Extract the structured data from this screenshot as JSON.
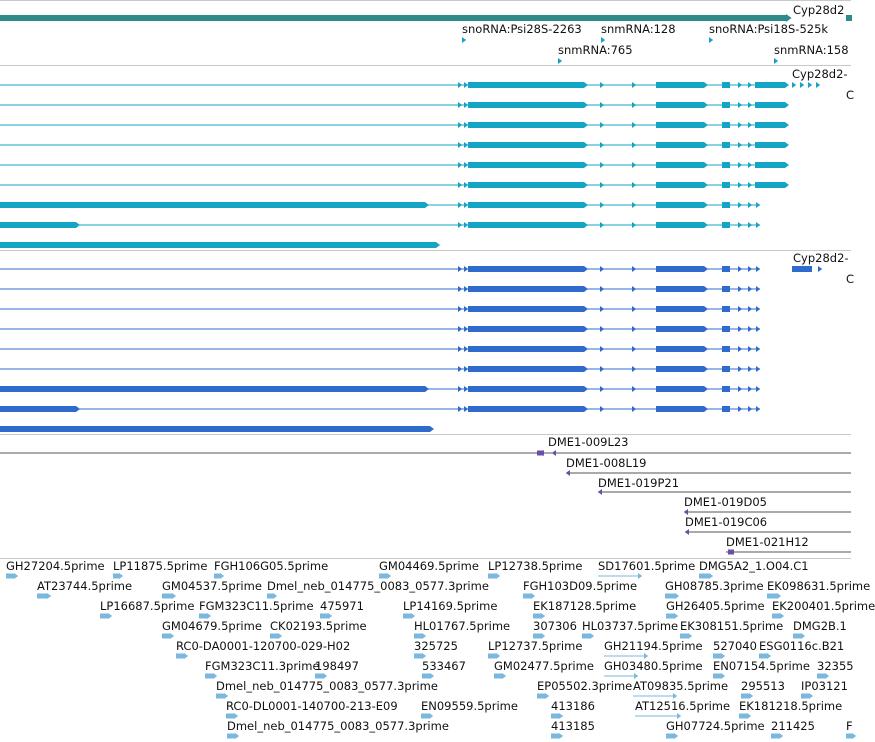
{
  "colors": {
    "gene": "#2e8b8b",
    "transcript_a": "#15a5c4",
    "transcript_b": "#2f6bcc",
    "clone": "#6a4fa8",
    "est": "#7ab8de",
    "separator": "#c8c8c8"
  },
  "tracks": {
    "gene": {
      "label": "Cyp28d2"
    },
    "snorna": {
      "items": [
        {
          "label": "snoRNA:Psi28S-2263"
        },
        {
          "label": "snmRNA:128"
        },
        {
          "label": "snoRNA:Psi18S-525k"
        },
        {
          "label": "snmRNA:765"
        },
        {
          "label": "snmRNA:158"
        }
      ]
    },
    "transcripts_a": {
      "labels": [
        "Cyp28d2-",
        "C"
      ]
    },
    "transcripts_b": {
      "labels": [
        "Cyp28d2-",
        "C"
      ]
    },
    "clones": {
      "items": [
        {
          "label": "DME1-009L23"
        },
        {
          "label": "DME1-008L19"
        },
        {
          "label": "DME1-019P21"
        },
        {
          "label": "DME1-019D05"
        },
        {
          "label": "DME1-019C06"
        },
        {
          "label": "DME1-021H12"
        }
      ]
    },
    "ests": {
      "items": [
        {
          "label": "GH27204.5prime"
        },
        {
          "label": "LP11875.5prime"
        },
        {
          "label": "FGH106G05.5prime"
        },
        {
          "label": "GM04469.5prime"
        },
        {
          "label": "LP12738.5prime"
        },
        {
          "label": "SD17601.5prime"
        },
        {
          "label": "DMG5A2_1.O04.C1"
        },
        {
          "label": "AT23744.5prime"
        },
        {
          "label": "GM04537.5prime"
        },
        {
          "label": "Dmel_neb_014775_0083_0577.3prime"
        },
        {
          "label": "FGH103D09.5prime"
        },
        {
          "label": "GH08785.3prime"
        },
        {
          "label": "EK098631.5prime"
        },
        {
          "label": "LP16687.5prime"
        },
        {
          "label": "FGM323C11.5prime"
        },
        {
          "label": "475971"
        },
        {
          "label": "LP14169.5prime"
        },
        {
          "label": "EK187128.5prime"
        },
        {
          "label": "GH26405.5prime"
        },
        {
          "label": "EK200401.5prime"
        },
        {
          "label": "GM04679.5prime"
        },
        {
          "label": "CK02193.5prime"
        },
        {
          "label": "HL01767.5prime"
        },
        {
          "label": "307306"
        },
        {
          "label": "HL03737.5prime"
        },
        {
          "label": "EK308151.5prime"
        },
        {
          "label": "DMG2B.1"
        },
        {
          "label": "RC0-DA0001-120700-029-H02"
        },
        {
          "label": "325725"
        },
        {
          "label": "LP12737.5prime"
        },
        {
          "label": "GH21194.5prime"
        },
        {
          "label": "527040"
        },
        {
          "label": "ESG0116c.B21"
        },
        {
          "label": "FGM323C11.3prime"
        },
        {
          "label": "198497"
        },
        {
          "label": "533467"
        },
        {
          "label": "GM02477.5prime"
        },
        {
          "label": "GH03480.5prime"
        },
        {
          "label": "EN07154.5prime"
        },
        {
          "label": "32355"
        },
        {
          "label": "Dmel_neb_014775_0083_0577.3prime"
        },
        {
          "label": "EP05502.3prime"
        },
        {
          "label": "AT09835.5prime"
        },
        {
          "label": "295513"
        },
        {
          "label": "IP03121"
        },
        {
          "label": "RC0-DL0001-140700-213-E09"
        },
        {
          "label": "EN09559.5prime"
        },
        {
          "label": "413186"
        },
        {
          "label": "AT12516.5prime"
        },
        {
          "label": "EK181218.5prime"
        },
        {
          "label": "Dmel_neb_014775_0083_0577.3prime"
        },
        {
          "label": "413185"
        },
        {
          "label": "GH07724.5prime"
        },
        {
          "label": "211425"
        },
        {
          "label": "F"
        }
      ]
    }
  }
}
